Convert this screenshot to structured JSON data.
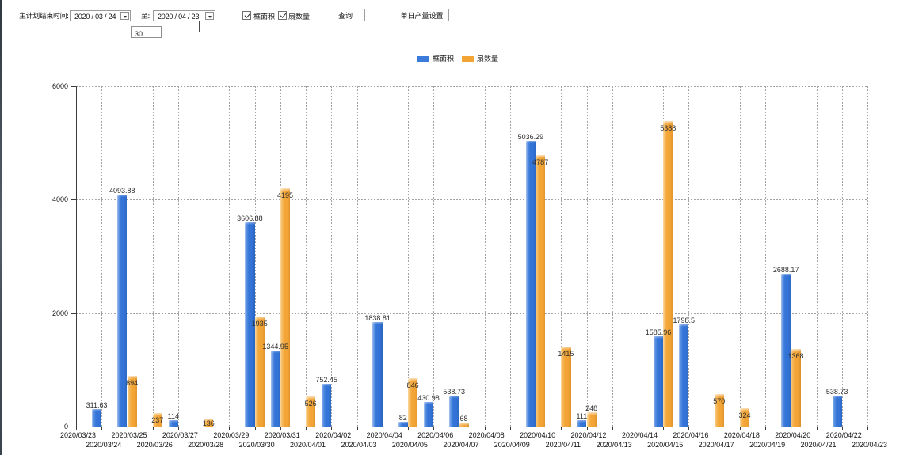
{
  "toolbar": {
    "end_time_label": "主计划结束时间:",
    "date_from": "2020 / 03 / 24",
    "to_label": "至:",
    "date_to": "2020 / 04 / 23",
    "interval_days": "30",
    "checkboxes": [
      {
        "label": "框面积",
        "checked": true
      },
      {
        "label": "扇数量",
        "checked": true
      }
    ],
    "query_button": "查询",
    "daily_output_button": "单日产量设置"
  },
  "chart_data": {
    "type": "bar",
    "title": "",
    "xlabel": "",
    "ylabel": "",
    "ylim": [
      0,
      6000
    ],
    "yticks": [
      0,
      2000,
      4000,
      6000
    ],
    "grid": "dashed",
    "legend_position": "top-center",
    "categories": [
      "2020/03/23",
      "2020/03/24",
      "2020/03/25",
      "2020/03/26",
      "2020/03/27",
      "2020/03/28",
      "2020/03/29",
      "2020/03/30",
      "2020/03/31",
      "2020/04/01",
      "2020/04/02",
      "2020/04/03",
      "2020/04/04",
      "2020/04/05",
      "2020/04/06",
      "2020/04/07",
      "2020/04/08",
      "2020/04/09",
      "2020/04/10",
      "2020/04/11",
      "2020/04/12",
      "2020/04/13",
      "2020/04/14",
      "2020/04/15",
      "2020/04/16",
      "2020/04/17",
      "2020/04/18",
      "2020/04/19",
      "2020/04/20",
      "2020/04/21",
      "2020/04/22",
      "2020/04/23"
    ],
    "series": [
      {
        "name": "框面积",
        "color": "#3b7cdb",
        "values": [
          0,
          311.63,
          4093.88,
          0,
          114,
          0,
          0,
          3606.88,
          1344.95,
          0,
          752.45,
          0,
          1838.81,
          82,
          430.98,
          538.73,
          0,
          0,
          5036.29,
          0,
          111,
          0,
          0,
          1585.96,
          1798.5,
          0,
          0,
          0,
          2688.17,
          0,
          538.73,
          0
        ],
        "labels": [
          "",
          "311.63",
          "4093.88",
          "",
          "114",
          "",
          "",
          "3606.88",
          "1344.95",
          "",
          "752.45",
          "",
          "1838.81",
          "82",
          "430.98",
          "538.73",
          "",
          "",
          "5036.29",
          "",
          "111",
          "",
          "",
          "1585.96",
          "1798.5",
          "",
          "",
          "",
          "2688.17",
          "",
          "538.73",
          ""
        ],
        "label_position": "above"
      },
      {
        "name": "扇数量",
        "color": "#f2a435",
        "values": [
          0,
          0,
          894,
          237,
          0,
          136,
          0,
          1935,
          4195,
          526,
          0,
          0,
          0,
          846,
          0,
          68,
          0,
          0,
          4787,
          1415,
          248,
          0,
          0,
          5388,
          0,
          570,
          324,
          0,
          1368,
          0,
          0,
          0
        ],
        "labels": [
          "",
          "",
          "894",
          "237",
          "",
          "136",
          "",
          "1935",
          "4195",
          "526",
          "",
          "",
          "",
          "846",
          "",
          "68",
          "",
          "",
          "4787",
          "1415",
          "248",
          "",
          "",
          "5388",
          "",
          "570",
          "324",
          "",
          "1368",
          "",
          "",
          ""
        ],
        "label_inside": [
          false,
          false,
          true,
          true,
          false,
          true,
          false,
          true,
          true,
          true,
          false,
          false,
          false,
          true,
          false,
          false,
          false,
          false,
          true,
          true,
          false,
          false,
          false,
          true,
          false,
          true,
          true,
          false,
          true,
          false,
          false,
          false
        ]
      }
    ]
  }
}
